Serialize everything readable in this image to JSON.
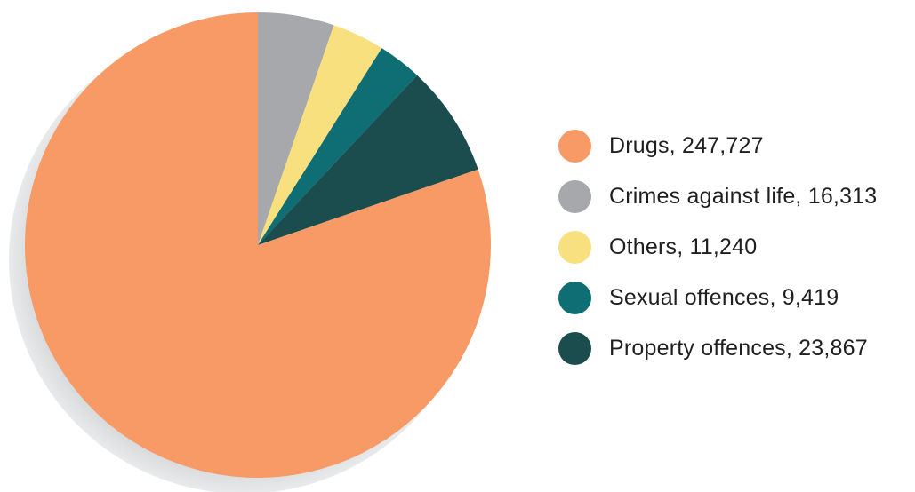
{
  "chart_data": {
    "type": "pie",
    "title": "",
    "legend_position": "right",
    "slices": [
      {
        "label": "Drugs, 247,727",
        "value": 247727,
        "color": "#f79a66"
      },
      {
        "label": "Crimes against life, 16,313",
        "value": 16313,
        "color": "#a7a8ab"
      },
      {
        "label": "Others, 11,240",
        "value": 11240,
        "color": "#f8e07f"
      },
      {
        "label": "Sexual offences, 9,419",
        "value": 9419,
        "color": "#0f6e73"
      },
      {
        "label": "Property offences, 23,867",
        "value": 23867,
        "color": "#1b4d4f"
      }
    ],
    "shadow_color": "#d6d7d9"
  }
}
